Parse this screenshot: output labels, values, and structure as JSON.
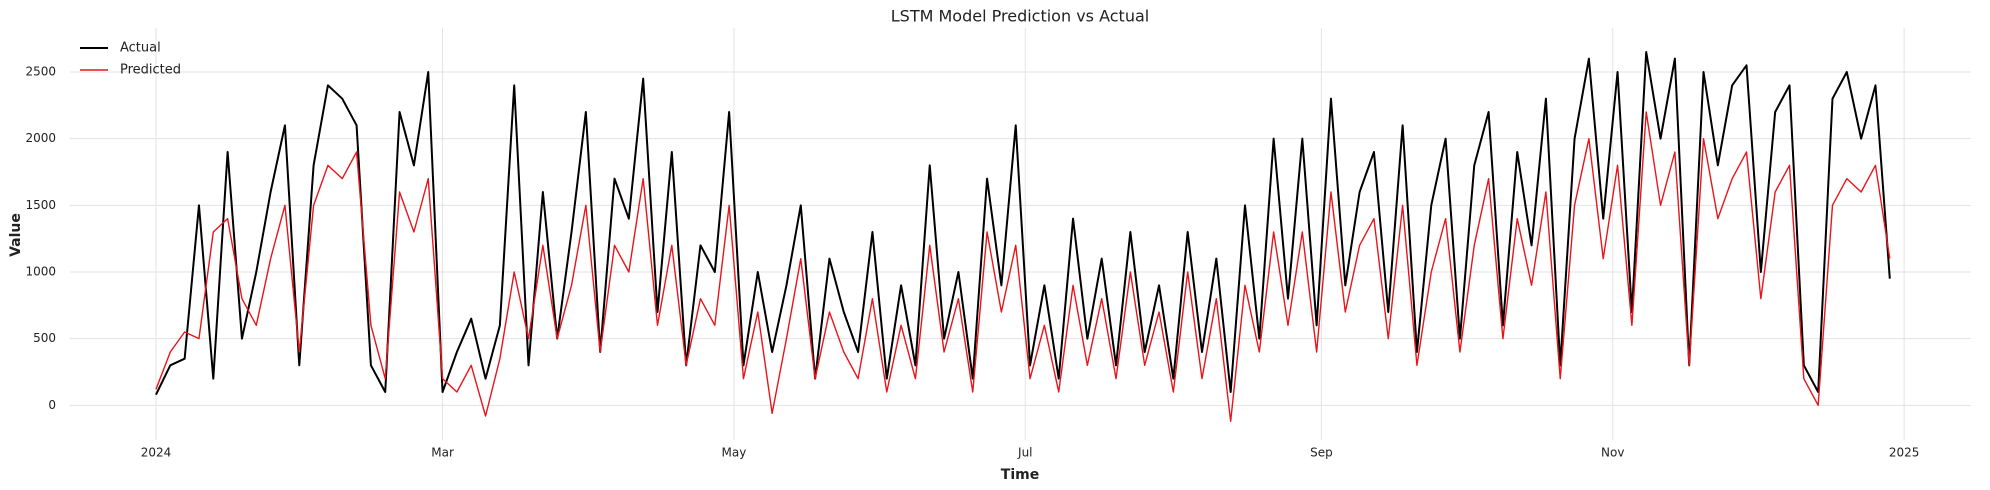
{
  "chart_data": {
    "type": "line",
    "title": "LSTM Model Prediction vs Actual",
    "x_label": "Time",
    "y_label": "Value",
    "x": [
      "2024-01-01",
      "2024-01-04",
      "2024-01-07",
      "2024-01-10",
      "2024-01-13",
      "2024-01-16",
      "2024-01-19",
      "2024-01-22",
      "2024-01-25",
      "2024-01-28",
      "2024-01-31",
      "2024-02-03",
      "2024-02-06",
      "2024-02-09",
      "2024-02-12",
      "2024-02-15",
      "2024-02-18",
      "2024-02-21",
      "2024-02-24",
      "2024-02-27",
      "2024-03-01",
      "2024-03-04",
      "2024-03-07",
      "2024-03-10",
      "2024-03-13",
      "2024-03-16",
      "2024-03-19",
      "2024-03-22",
      "2024-03-25",
      "2024-03-28",
      "2024-03-31",
      "2024-04-03",
      "2024-04-06",
      "2024-04-09",
      "2024-04-12",
      "2024-04-15",
      "2024-04-18",
      "2024-04-21",
      "2024-04-24",
      "2024-04-27",
      "2024-04-30",
      "2024-05-03",
      "2024-05-06",
      "2024-05-09",
      "2024-05-12",
      "2024-05-15",
      "2024-05-18",
      "2024-05-21",
      "2024-05-24",
      "2024-05-27",
      "2024-05-30",
      "2024-06-02",
      "2024-06-05",
      "2024-06-08",
      "2024-06-11",
      "2024-06-14",
      "2024-06-17",
      "2024-06-20",
      "2024-06-23",
      "2024-06-26",
      "2024-06-29",
      "2024-07-02",
      "2024-07-05",
      "2024-07-08",
      "2024-07-11",
      "2024-07-14",
      "2024-07-17",
      "2024-07-20",
      "2024-07-23",
      "2024-07-26",
      "2024-07-29",
      "2024-08-01",
      "2024-08-04",
      "2024-08-07",
      "2024-08-10",
      "2024-08-13",
      "2024-08-16",
      "2024-08-19",
      "2024-08-22",
      "2024-08-25",
      "2024-08-28",
      "2024-08-31",
      "2024-09-03",
      "2024-09-06",
      "2024-09-09",
      "2024-09-12",
      "2024-09-15",
      "2024-09-18",
      "2024-09-21",
      "2024-09-24",
      "2024-09-27",
      "2024-09-30",
      "2024-10-03",
      "2024-10-06",
      "2024-10-09",
      "2024-10-12",
      "2024-10-15",
      "2024-10-18",
      "2024-10-21",
      "2024-10-24",
      "2024-10-27",
      "2024-10-30",
      "2024-11-02",
      "2024-11-05",
      "2024-11-08",
      "2024-11-11",
      "2024-11-14",
      "2024-11-17",
      "2024-11-20",
      "2024-11-23",
      "2024-11-26",
      "2024-11-29",
      "2024-12-02",
      "2024-12-05",
      "2024-12-08",
      "2024-12-11",
      "2024-12-14",
      "2024-12-17",
      "2024-12-20",
      "2024-12-23",
      "2024-12-26",
      "2024-12-29"
    ],
    "series": [
      {
        "name": "Actual",
        "color": "#000000",
        "width": 2,
        "values": [
          80,
          300,
          350,
          1500,
          200,
          1900,
          500,
          1000,
          1600,
          2100,
          300,
          1800,
          2400,
          2300,
          2100,
          300,
          100,
          2200,
          1800,
          2500,
          100,
          400,
          650,
          200,
          600,
          2400,
          300,
          1600,
          500,
          1300,
          2200,
          400,
          1700,
          1400,
          2450,
          700,
          1900,
          300,
          1200,
          1000,
          2200,
          300,
          1000,
          400,
          900,
          1500,
          200,
          1100,
          700,
          400,
          1300,
          200,
          900,
          300,
          1800,
          500,
          1000,
          200,
          1700,
          900,
          2100,
          300,
          900,
          200,
          1400,
          500,
          1100,
          300,
          1300,
          400,
          900,
          200,
          1300,
          400,
          1100,
          100,
          1500,
          500,
          2000,
          800,
          2000,
          600,
          2300,
          900,
          1600,
          1900,
          700,
          2100,
          400,
          1500,
          2000,
          500,
          1800,
          2200,
          600,
          1900,
          1200,
          2300,
          300,
          2000,
          2600,
          1400,
          2500,
          700,
          2650,
          2000,
          2600,
          300,
          2500,
          1800,
          2400,
          2550,
          1000,
          2200,
          2400,
          300,
          100,
          2300,
          2500,
          2000,
          2400,
          950
        ]
      },
      {
        "name": "Predicted",
        "color": "#e8151b",
        "width": 1.4,
        "values": [
          120,
          400,
          550,
          500,
          1300,
          1400,
          800,
          600,
          1100,
          1500,
          400,
          1500,
          1800,
          1700,
          1900,
          600,
          200,
          1600,
          1300,
          1700,
          200,
          100,
          300,
          -80,
          350,
          1000,
          500,
          1200,
          500,
          900,
          1500,
          400,
          1200,
          1000,
          1700,
          600,
          1200,
          300,
          800,
          600,
          1500,
          200,
          700,
          -60,
          500,
          1100,
          200,
          700,
          400,
          200,
          800,
          100,
          600,
          200,
          1200,
          400,
          800,
          100,
          1300,
          700,
          1200,
          200,
          600,
          100,
          900,
          300,
          800,
          200,
          1000,
          300,
          700,
          100,
          1000,
          200,
          800,
          -120,
          900,
          400,
          1300,
          600,
          1300,
          400,
          1600,
          700,
          1200,
          1400,
          500,
          1500,
          300,
          1000,
          1400,
          400,
          1200,
          1700,
          500,
          1400,
          900,
          1600,
          200,
          1500,
          2000,
          1100,
          1800,
          600,
          2200,
          1500,
          1900,
          300,
          2000,
          1400,
          1700,
          1900,
          800,
          1600,
          1800,
          200,
          0,
          1500,
          1700,
          1600,
          1800,
          1100
        ]
      }
    ],
    "xlim": [
      "2023-12-14",
      "2025-01-15"
    ],
    "xticks": [
      {
        "value": "2024-01-01",
        "label": "2024"
      },
      {
        "value": "2024-03-01",
        "label": "Mar"
      },
      {
        "value": "2024-05-01",
        "label": "May"
      },
      {
        "value": "2024-07-01",
        "label": "Jul"
      },
      {
        "value": "2024-09-01",
        "label": "Sep"
      },
      {
        "value": "2024-11-01",
        "label": "Nov"
      },
      {
        "value": "2025-01-01",
        "label": "2025"
      }
    ],
    "ylim": [
      -260,
      2830
    ],
    "yticks": [
      0,
      500,
      1000,
      1500,
      2000,
      2500
    ],
    "grid": true,
    "legend": "upper-left"
  }
}
